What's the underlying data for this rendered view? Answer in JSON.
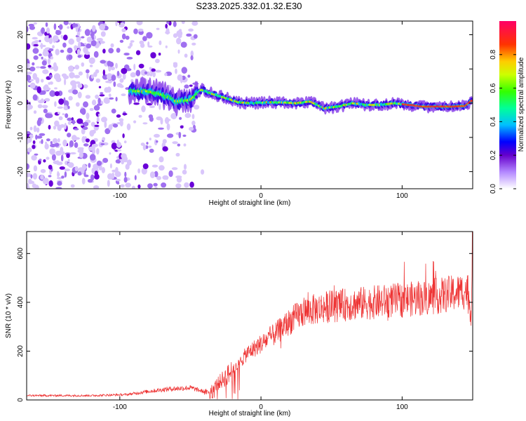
{
  "title": "S233.2025.332.01.32.E30",
  "chart_data": [
    {
      "type": "heatmap",
      "xlabel": "Height of straight line (km)",
      "ylabel": "Frequency (Hz)",
      "xlim": [
        -166,
        150
      ],
      "ylim": [
        -25,
        24
      ],
      "xticks": [
        -100,
        0,
        100
      ],
      "xtick_labels": [
        "-100",
        "0",
        "100"
      ],
      "yticks": [
        -20,
        -10,
        0,
        10,
        20
      ],
      "ytick_labels": [
        "-20",
        "-10",
        "0",
        "10",
        "20"
      ],
      "colorbar": {
        "label": "Normalized spectral amplitude",
        "range": [
          0,
          1
        ],
        "ticks": [
          0,
          0.2,
          0.4,
          0.6,
          0.8
        ],
        "tick_labels": [
          "0.0",
          "0.2",
          "0.4",
          "0.6",
          "0.8"
        ],
        "colormap": "rainbow"
      },
      "ridge": {
        "x": [
          -93,
          -80,
          -70,
          -60,
          -50,
          -42,
          -35,
          -25,
          -15,
          -5,
          5,
          15,
          25,
          35,
          45,
          55,
          65,
          75,
          85,
          95,
          105,
          115,
          125,
          135,
          145,
          150
        ],
        "y": [
          3.5,
          3.5,
          2.5,
          0.5,
          1,
          4,
          2.8,
          1.5,
          0.2,
          0,
          0.3,
          0.2,
          0,
          0.5,
          -1.5,
          -1,
          0,
          -0.5,
          -0.5,
          0,
          -0.5,
          -1,
          -1,
          -1,
          -0.8,
          1
        ]
      }
    },
    {
      "type": "line",
      "xlabel": "Height of straight line (km)",
      "ylabel": "SNR (10 * v/v)",
      "xlim": [
        -166,
        150
      ],
      "ylim": [
        0,
        690
      ],
      "xticks": [
        -100,
        0,
        100
      ],
      "xtick_labels": [
        "-100",
        "0",
        "100"
      ],
      "yticks": [
        0,
        200,
        400,
        600
      ],
      "ytick_labels": [
        "0",
        "200",
        "400",
        "600"
      ],
      "line_color": "#ee3333",
      "envelope": {
        "x": [
          -166,
          -120,
          -95,
          -80,
          -65,
          -50,
          -38,
          -30,
          -20,
          -10,
          0,
          10,
          20,
          30,
          45,
          60,
          80,
          100,
          120,
          140,
          146,
          149,
          150
        ],
        "y": [
          18,
          18,
          22,
          35,
          45,
          50,
          30,
          70,
          120,
          190,
          230,
          270,
          320,
          360,
          380,
          390,
          400,
          410,
          420,
          440,
          450,
          360,
          650
        ]
      }
    }
  ]
}
